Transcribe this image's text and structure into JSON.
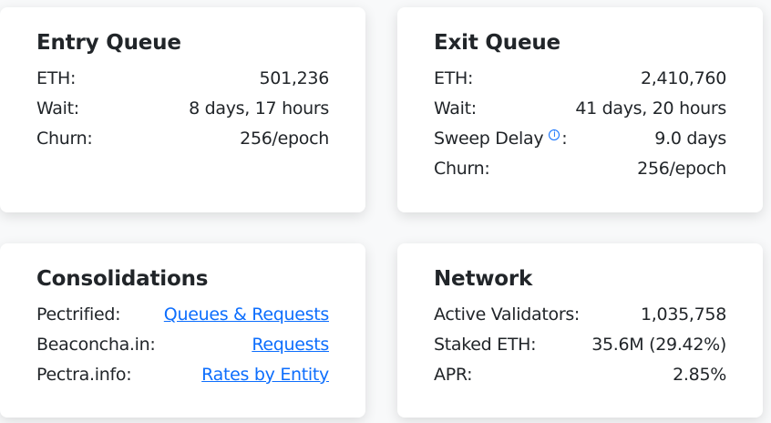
{
  "entry_queue": {
    "title": "Entry Queue",
    "rows": [
      {
        "label": "ETH:",
        "value": "501,236"
      },
      {
        "label": "Wait:",
        "value": "8 days, 17 hours"
      },
      {
        "label": "Churn:",
        "value": "256/epoch"
      }
    ]
  },
  "exit_queue": {
    "title": "Exit Queue",
    "rows": [
      {
        "label": "ETH:",
        "value": "2,410,760"
      },
      {
        "label": "Wait:",
        "value": "41 days, 20 hours"
      },
      {
        "label": "Sweep Delay",
        "info_icon": "ⓘ",
        "suffix": ":",
        "value": "9.0 days"
      },
      {
        "label": "Churn:",
        "value": "256/epoch"
      }
    ]
  },
  "consolidations": {
    "title": "Consolidations",
    "rows": [
      {
        "label": "Pectrified:",
        "link": "Queues & Requests"
      },
      {
        "label": "Beaconcha.in:",
        "link": "Requests"
      },
      {
        "label": "Pectra.info:",
        "link": "Rates by Entity"
      }
    ]
  },
  "network": {
    "title": "Network",
    "rows": [
      {
        "label": "Active Validators:",
        "value": "1,035,758"
      },
      {
        "label": "Staked ETH:",
        "value": "35.6M (29.42%)"
      },
      {
        "label": "APR:",
        "value": "2.85%"
      }
    ]
  },
  "colors": {
    "link": "#0d6efd",
    "text": "#212529"
  }
}
